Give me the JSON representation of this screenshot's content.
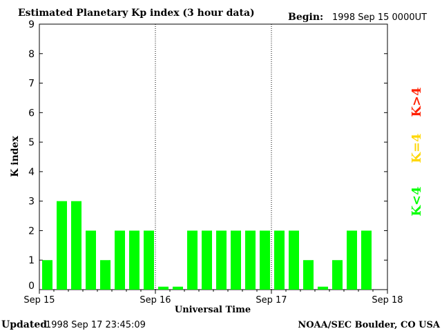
{
  "header": {
    "title": "Estimated Planetary Kp index (3 hour data)",
    "begin_label": "Begin:",
    "begin_value": "1998 Sep 15 0000UT"
  },
  "footer": {
    "updated_label": "Updated",
    "updated_value": "1998 Sep 17 23:45:09",
    "credit": "NOAA/SEC Boulder, CO USA"
  },
  "legend": {
    "low": {
      "label": "K<4",
      "color": "#00ff00"
    },
    "mid": {
      "label": "K=4",
      "color": "#ffd700"
    },
    "high": {
      "label": "K>4",
      "color": "#ff2000"
    }
  },
  "chart_data": {
    "type": "bar",
    "xlabel": "Universal Time",
    "ylabel": "K index",
    "ylim": [
      0,
      9
    ],
    "yticks": [
      0,
      1,
      2,
      3,
      4,
      5,
      6,
      7,
      8,
      9
    ],
    "x_tick_labels": [
      "Sep 15",
      "Sep 16",
      "Sep 17",
      "Sep 18"
    ],
    "day_separators": [
      "Sep 16",
      "Sep 17"
    ],
    "interval_hours": 3,
    "values": [
      1,
      3,
      3,
      2,
      1,
      2,
      2,
      2,
      0.1,
      0.1,
      2,
      2,
      2,
      2,
      2,
      2,
      2,
      2,
      1,
      0.1,
      1,
      2,
      2
    ]
  }
}
